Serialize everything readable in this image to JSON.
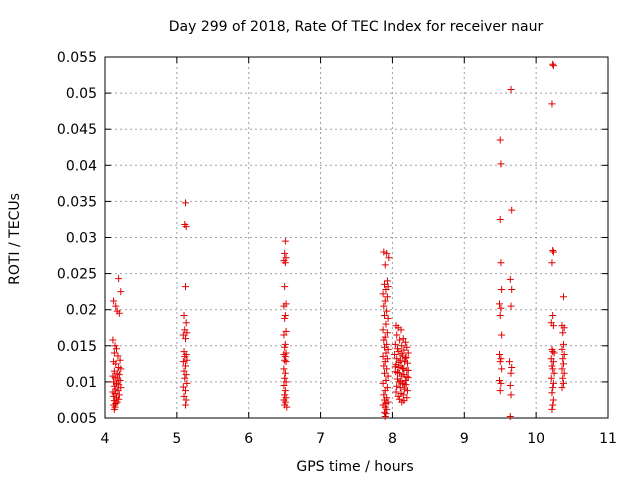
{
  "chart_data": {
    "type": "scatter",
    "title": "Day 299 of 2018, Rate Of TEC Index for receiver naur",
    "xlabel": "GPS time / hours",
    "ylabel": "ROTI / TECUs",
    "xlim": [
      4,
      11
    ],
    "ylim": [
      0.005,
      0.055
    ],
    "xticks": [
      "4",
      "5",
      "6",
      "7",
      "8",
      "9",
      "10",
      "11"
    ],
    "yticks": [
      "0.005",
      "0.01",
      "0.015",
      "0.02",
      "0.025",
      "0.03",
      "0.035",
      "0.04",
      "0.045",
      "0.05",
      "0.055"
    ],
    "grid": true,
    "marker": "+",
    "color": "#e00000",
    "series": [
      {
        "name": "ROTI",
        "points": [
          [
            4.12,
            0.0212
          ],
          [
            4.15,
            0.0205
          ],
          [
            4.19,
            0.0243
          ],
          [
            4.22,
            0.0225
          ],
          [
            4.17,
            0.0198
          ],
          [
            4.2,
            0.0195
          ],
          [
            4.11,
            0.0158
          ],
          [
            4.14,
            0.015
          ],
          [
            4.16,
            0.0146
          ],
          [
            4.13,
            0.014
          ],
          [
            4.18,
            0.0136
          ],
          [
            4.21,
            0.013
          ],
          [
            4.12,
            0.0128
          ],
          [
            4.15,
            0.0125
          ],
          [
            4.19,
            0.012
          ],
          [
            4.22,
            0.0118
          ],
          [
            4.13,
            0.0115
          ],
          [
            4.17,
            0.0112
          ],
          [
            4.2,
            0.011
          ],
          [
            4.11,
            0.0108
          ],
          [
            4.14,
            0.0106
          ],
          [
            4.18,
            0.0104
          ],
          [
            4.21,
            0.0102
          ],
          [
            4.12,
            0.01
          ],
          [
            4.16,
            0.0098
          ],
          [
            4.19,
            0.0096
          ],
          [
            4.13,
            0.0094
          ],
          [
            4.22,
            0.0092
          ],
          [
            4.15,
            0.009
          ],
          [
            4.18,
            0.0088
          ],
          [
            4.11,
            0.0086
          ],
          [
            4.14,
            0.0084
          ],
          [
            4.2,
            0.0082
          ],
          [
            4.12,
            0.008
          ],
          [
            4.16,
            0.0078
          ],
          [
            4.19,
            0.0076
          ],
          [
            4.13,
            0.0074
          ],
          [
            4.17,
            0.0072
          ],
          [
            4.15,
            0.007
          ],
          [
            4.12,
            0.0068
          ],
          [
            4.14,
            0.0065
          ],
          [
            4.13,
            0.0062
          ],
          [
            5.12,
            0.0348
          ],
          [
            5.11,
            0.0318
          ],
          [
            5.13,
            0.0315
          ],
          [
            5.12,
            0.0232
          ],
          [
            5.1,
            0.0192
          ],
          [
            5.13,
            0.0182
          ],
          [
            5.11,
            0.0172
          ],
          [
            5.14,
            0.0168
          ],
          [
            5.09,
            0.0165
          ],
          [
            5.12,
            0.016
          ],
          [
            5.1,
            0.0142
          ],
          [
            5.13,
            0.0138
          ],
          [
            5.11,
            0.0135
          ],
          [
            5.14,
            0.013
          ],
          [
            5.09,
            0.0128
          ],
          [
            5.12,
            0.0122
          ],
          [
            5.1,
            0.0115
          ],
          [
            5.13,
            0.011
          ],
          [
            5.11,
            0.0105
          ],
          [
            5.14,
            0.0098
          ],
          [
            5.09,
            0.0093
          ],
          [
            5.12,
            0.0088
          ],
          [
            5.1,
            0.008
          ],
          [
            5.13,
            0.0075
          ],
          [
            5.12,
            0.0068
          ],
          [
            6.51,
            0.0295
          ],
          [
            6.5,
            0.0278
          ],
          [
            6.52,
            0.0272
          ],
          [
            6.49,
            0.0268
          ],
          [
            6.51,
            0.0265
          ],
          [
            6.5,
            0.0232
          ],
          [
            6.52,
            0.0208
          ],
          [
            6.49,
            0.0205
          ],
          [
            6.51,
            0.0192
          ],
          [
            6.5,
            0.0188
          ],
          [
            6.52,
            0.017
          ],
          [
            6.49,
            0.0165
          ],
          [
            6.51,
            0.0152
          ],
          [
            6.5,
            0.0148
          ],
          [
            6.52,
            0.014
          ],
          [
            6.49,
            0.0138
          ],
          [
            6.51,
            0.0135
          ],
          [
            6.5,
            0.013
          ],
          [
            6.52,
            0.0128
          ],
          [
            6.49,
            0.0118
          ],
          [
            6.51,
            0.0112
          ],
          [
            6.5,
            0.0105
          ],
          [
            6.52,
            0.01
          ],
          [
            6.49,
            0.0095
          ],
          [
            6.51,
            0.0088
          ],
          [
            6.5,
            0.0082
          ],
          [
            6.52,
            0.0078
          ],
          [
            6.49,
            0.0075
          ],
          [
            6.51,
            0.0072
          ],
          [
            6.5,
            0.0068
          ],
          [
            6.53,
            0.0065
          ],
          [
            7.88,
            0.028
          ],
          [
            7.92,
            0.0278
          ],
          [
            7.95,
            0.0272
          ],
          [
            7.9,
            0.0262
          ],
          [
            7.93,
            0.024
          ],
          [
            7.89,
            0.0235
          ],
          [
            7.94,
            0.0232
          ],
          [
            7.91,
            0.0228
          ],
          [
            7.87,
            0.0222
          ],
          [
            7.93,
            0.0218
          ],
          [
            7.9,
            0.0212
          ],
          [
            7.88,
            0.0205
          ],
          [
            7.92,
            0.0198
          ],
          [
            7.89,
            0.0192
          ],
          [
            7.94,
            0.0188
          ],
          [
            7.91,
            0.018
          ],
          [
            7.87,
            0.0172
          ],
          [
            7.93,
            0.0168
          ],
          [
            7.9,
            0.0162
          ],
          [
            7.88,
            0.0158
          ],
          [
            7.92,
            0.0152
          ],
          [
            7.89,
            0.0148
          ],
          [
            7.94,
            0.0145
          ],
          [
            7.91,
            0.014
          ],
          [
            7.87,
            0.0135
          ],
          [
            7.93,
            0.0132
          ],
          [
            7.9,
            0.0128
          ],
          [
            7.88,
            0.0122
          ],
          [
            7.92,
            0.0118
          ],
          [
            7.89,
            0.0112
          ],
          [
            7.94,
            0.0108
          ],
          [
            7.91,
            0.0102
          ],
          [
            7.87,
            0.0098
          ],
          [
            7.93,
            0.0092
          ],
          [
            7.9,
            0.0088
          ],
          [
            7.88,
            0.0082
          ],
          [
            7.92,
            0.0078
          ],
          [
            7.89,
            0.0075
          ],
          [
            7.94,
            0.0072
          ],
          [
            7.91,
            0.007
          ],
          [
            7.87,
            0.0068
          ],
          [
            7.9,
            0.0065
          ],
          [
            7.92,
            0.0062
          ],
          [
            7.89,
            0.0058
          ],
          [
            7.91,
            0.0056
          ],
          [
            7.9,
            0.0052
          ],
          [
            8.05,
            0.0178
          ],
          [
            8.08,
            0.0175
          ],
          [
            8.12,
            0.0172
          ],
          [
            8.06,
            0.0165
          ],
          [
            8.15,
            0.016
          ],
          [
            8.1,
            0.0158
          ],
          [
            8.18,
            0.0155
          ],
          [
            8.04,
            0.0152
          ],
          [
            8.13,
            0.015
          ],
          [
            8.2,
            0.0148
          ],
          [
            8.07,
            0.0146
          ],
          [
            8.16,
            0.0144
          ],
          [
            8.09,
            0.0142
          ],
          [
            8.22,
            0.014
          ],
          [
            8.03,
            0.0138
          ],
          [
            8.14,
            0.0136
          ],
          [
            8.19,
            0.0134
          ],
          [
            8.06,
            0.0132
          ],
          [
            8.11,
            0.013
          ],
          [
            8.17,
            0.0128
          ],
          [
            8.21,
            0.0126
          ],
          [
            8.05,
            0.0124
          ],
          [
            8.12,
            0.0122
          ],
          [
            8.08,
            0.012
          ],
          [
            8.15,
            0.0118
          ],
          [
            8.2,
            0.0116
          ],
          [
            8.04,
            0.0114
          ],
          [
            8.1,
            0.0112
          ],
          [
            8.16,
            0.011
          ],
          [
            8.13,
            0.0108
          ],
          [
            8.22,
            0.0106
          ],
          [
            8.07,
            0.0104
          ],
          [
            8.18,
            0.0102
          ],
          [
            8.09,
            0.01
          ],
          [
            8.14,
            0.0098
          ],
          [
            8.19,
            0.0096
          ],
          [
            8.06,
            0.0094
          ],
          [
            8.11,
            0.0092
          ],
          [
            8.17,
            0.009
          ],
          [
            8.21,
            0.0088
          ],
          [
            8.05,
            0.0086
          ],
          [
            8.12,
            0.0084
          ],
          [
            8.15,
            0.0082
          ],
          [
            8.08,
            0.008
          ],
          [
            8.2,
            0.0078
          ],
          [
            8.1,
            0.0076
          ],
          [
            8.16,
            0.0074
          ],
          [
            8.13,
            0.0072
          ],
          [
            8.18,
            0.0133
          ],
          [
            8.09,
            0.0127
          ],
          [
            8.14,
            0.0119
          ],
          [
            8.07,
            0.0113
          ],
          [
            8.2,
            0.0107
          ],
          [
            8.11,
            0.0101
          ],
          [
            8.16,
            0.0097
          ],
          [
            8.04,
            0.0121
          ],
          [
            8.22,
            0.0116
          ],
          [
            8.12,
            0.0139
          ],
          [
            9.5,
            0.0435
          ],
          [
            9.51,
            0.0402
          ],
          [
            9.5,
            0.0325
          ],
          [
            9.51,
            0.0265
          ],
          [
            9.52,
            0.0228
          ],
          [
            9.49,
            0.0208
          ],
          [
            9.51,
            0.0202
          ],
          [
            9.5,
            0.0192
          ],
          [
            9.52,
            0.0165
          ],
          [
            9.49,
            0.0138
          ],
          [
            9.51,
            0.0132
          ],
          [
            9.5,
            0.0128
          ],
          [
            9.52,
            0.0118
          ],
          [
            9.49,
            0.0102
          ],
          [
            9.51,
            0.0098
          ],
          [
            9.5,
            0.0088
          ],
          [
            9.65,
            0.0505
          ],
          [
            9.66,
            0.0338
          ],
          [
            9.64,
            0.0242
          ],
          [
            9.66,
            0.0228
          ],
          [
            9.65,
            0.0205
          ],
          [
            9.63,
            0.0128
          ],
          [
            9.66,
            0.012
          ],
          [
            9.65,
            0.0112
          ],
          [
            9.64,
            0.0095
          ],
          [
            9.65,
            0.0082
          ],
          [
            9.64,
            0.0052
          ],
          [
            10.23,
            0.054
          ],
          [
            10.24,
            0.0538
          ],
          [
            10.22,
            0.0485
          ],
          [
            10.23,
            0.0282
          ],
          [
            10.24,
            0.028
          ],
          [
            10.22,
            0.0265
          ],
          [
            10.23,
            0.0192
          ],
          [
            10.21,
            0.0182
          ],
          [
            10.24,
            0.0178
          ],
          [
            10.22,
            0.0145
          ],
          [
            10.23,
            0.0142
          ],
          [
            10.25,
            0.014
          ],
          [
            10.21,
            0.0132
          ],
          [
            10.24,
            0.0128
          ],
          [
            10.22,
            0.0122
          ],
          [
            10.23,
            0.0118
          ],
          [
            10.25,
            0.0112
          ],
          [
            10.21,
            0.0105
          ],
          [
            10.24,
            0.0098
          ],
          [
            10.23,
            0.0092
          ],
          [
            10.22,
            0.0085
          ],
          [
            10.24,
            0.0075
          ],
          [
            10.23,
            0.0068
          ],
          [
            10.22,
            0.0062
          ],
          [
            10.38,
            0.0218
          ],
          [
            10.36,
            0.0178
          ],
          [
            10.39,
            0.0175
          ],
          [
            10.37,
            0.0168
          ],
          [
            10.38,
            0.0152
          ],
          [
            10.36,
            0.0145
          ],
          [
            10.39,
            0.0138
          ],
          [
            10.37,
            0.0132
          ],
          [
            10.38,
            0.0125
          ],
          [
            10.36,
            0.0118
          ],
          [
            10.39,
            0.0112
          ],
          [
            10.37,
            0.0105
          ],
          [
            10.38,
            0.0098
          ],
          [
            10.36,
            0.0092
          ]
        ]
      }
    ]
  }
}
